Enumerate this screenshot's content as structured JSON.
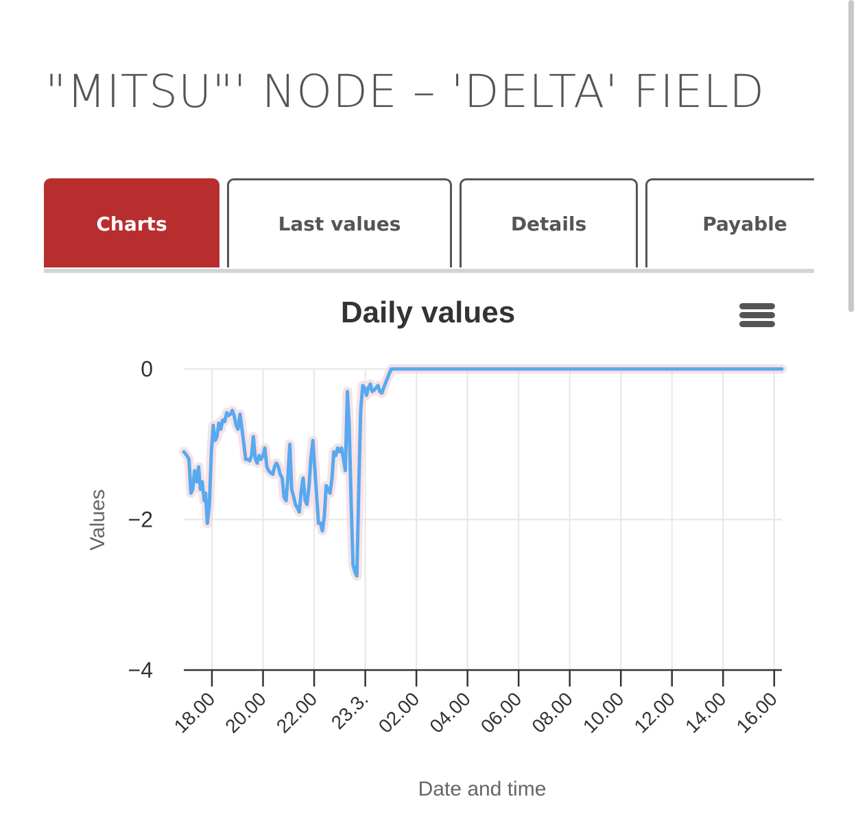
{
  "page": {
    "title": "\"MITSU\"' NODE – 'DELTA' FIELD"
  },
  "tabs": [
    {
      "label": "Charts",
      "active": true
    },
    {
      "label": "Last values",
      "active": false
    },
    {
      "label": "Details",
      "active": false
    },
    {
      "label": "Payable",
      "active": false
    }
  ],
  "chart_menu": {
    "icon": "hamburger-menu-icon"
  },
  "colors": {
    "active_tab": "#b82e2e",
    "series_line": "#57a9f0",
    "error_band": "#f3d6dc",
    "grid": "#e6e6e6",
    "axis": "#333333",
    "text": "#555555"
  },
  "chart_data": {
    "type": "line",
    "title": "Daily values",
    "xlabel": "Date and time",
    "ylabel": "Values",
    "ylim": [
      -4,
      0
    ],
    "y_ticks": [
      {
        "value": 0,
        "label": "0"
      },
      {
        "value": -2,
        "label": "−2"
      },
      {
        "value": -4,
        "label": "−4"
      }
    ],
    "x_range_hours": [
      16.9,
      40.3
    ],
    "x_ticks": [
      {
        "hour": 18,
        "label": "18.00"
      },
      {
        "hour": 20,
        "label": "20.00"
      },
      {
        "hour": 22,
        "label": "22.00"
      },
      {
        "hour": 24,
        "label": "23.3."
      },
      {
        "hour": 26,
        "label": "02.00"
      },
      {
        "hour": 28,
        "label": "04.00"
      },
      {
        "hour": 30,
        "label": "06.00"
      },
      {
        "hour": 32,
        "label": "08.00"
      },
      {
        "hour": 34,
        "label": "10.00"
      },
      {
        "hour": 36,
        "label": "12.00"
      },
      {
        "hour": 38,
        "label": "14.00"
      },
      {
        "hour": 40,
        "label": "16.00"
      }
    ],
    "grid": true,
    "legend": "none",
    "series": [
      {
        "color": "#57a9f0",
        "x": [
          16.9,
          17.02,
          17.1,
          17.18,
          17.25,
          17.32,
          17.4,
          17.48,
          17.55,
          17.62,
          17.7,
          17.75,
          17.82,
          17.9,
          17.98,
          18.05,
          18.12,
          18.2,
          18.27,
          18.35,
          18.42,
          18.5,
          18.58,
          18.65,
          18.72,
          18.8,
          18.87,
          18.95,
          19.02,
          19.1,
          19.17,
          19.25,
          19.32,
          19.4,
          19.48,
          19.55,
          19.62,
          19.7,
          19.77,
          19.85,
          19.92,
          20.0,
          20.07,
          20.15,
          20.22,
          20.3,
          20.38,
          20.45,
          20.52,
          20.6,
          20.67,
          20.75,
          20.82,
          20.9,
          20.97,
          21.05,
          21.12,
          21.2,
          21.27,
          21.35,
          21.42,
          21.5,
          21.57,
          21.65,
          21.72,
          21.8,
          21.87,
          21.95,
          22.02,
          22.1,
          22.17,
          22.25,
          22.32,
          22.4,
          22.47,
          22.55,
          22.62,
          22.7,
          22.77,
          22.85,
          22.92,
          23.0,
          23.07,
          23.15,
          23.22,
          23.3,
          23.37,
          23.45,
          23.52,
          23.6,
          23.67,
          23.75,
          23.82,
          23.9,
          23.97,
          24.05,
          24.12,
          24.2,
          24.27,
          24.35,
          24.42,
          24.5,
          24.57,
          24.65,
          24.72,
          24.8,
          24.87,
          24.95,
          25.02,
          25.1,
          25.2,
          25.3,
          26.0,
          28.0,
          30.0,
          32.0,
          34.0,
          36.0,
          38.0,
          40.0,
          40.3
        ],
        "y": [
          -1.1,
          -1.15,
          -1.2,
          -1.65,
          -1.6,
          -1.35,
          -1.5,
          -1.3,
          -1.6,
          -1.5,
          -1.75,
          -1.65,
          -2.05,
          -1.8,
          -1.1,
          -0.75,
          -0.95,
          -0.9,
          -0.72,
          -0.8,
          -0.68,
          -0.7,
          -0.58,
          -0.62,
          -0.6,
          -0.55,
          -0.62,
          -0.75,
          -0.8,
          -0.6,
          -0.78,
          -1.0,
          -1.2,
          -1.2,
          -1.22,
          -1.15,
          -0.9,
          -1.2,
          -1.25,
          -1.15,
          -1.2,
          -1.15,
          -1.05,
          -1.3,
          -1.35,
          -1.38,
          -1.4,
          -1.3,
          -1.25,
          -1.3,
          -1.4,
          -1.45,
          -1.7,
          -1.75,
          -1.45,
          -1.0,
          -1.6,
          -1.7,
          -1.8,
          -1.85,
          -1.9,
          -1.6,
          -1.45,
          -1.75,
          -1.8,
          -1.55,
          -1.2,
          -0.95,
          -1.3,
          -1.7,
          -2.05,
          -2.05,
          -2.15,
          -1.95,
          -1.55,
          -1.6,
          -1.65,
          -1.45,
          -1.1,
          -1.15,
          -1.05,
          -1.1,
          -1.05,
          -1.2,
          -1.35,
          -0.3,
          -0.75,
          -1.8,
          -2.6,
          -2.7,
          -2.75,
          -1.5,
          -0.55,
          -0.22,
          -0.25,
          -0.35,
          -0.25,
          -0.2,
          -0.3,
          -0.28,
          -0.25,
          -0.22,
          -0.3,
          -0.32,
          -0.25,
          -0.18,
          -0.12,
          -0.05,
          0.0,
          0.0,
          0.0,
          0.0,
          0.0,
          0.0,
          0.0,
          0.0,
          0.0,
          0.0,
          0.0,
          0.0,
          0.0
        ]
      }
    ]
  }
}
